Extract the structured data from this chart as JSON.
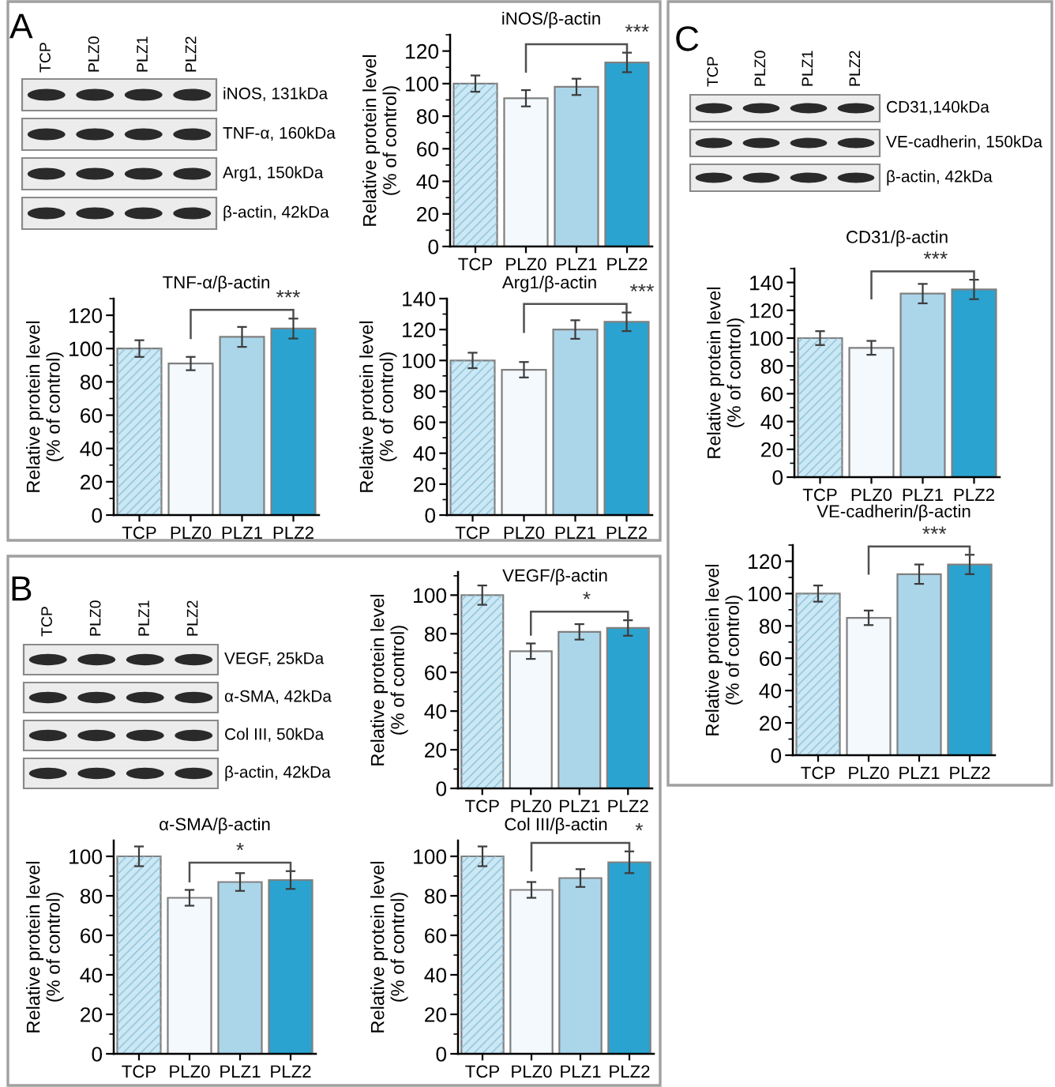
{
  "chart_data": [
    {
      "type": "other",
      "title": "A",
      "categories": [
        "TCP",
        "PLZ0",
        "PLZ1",
        "PLZ2"
      ],
      "y_categories": [
        "iNOS, 131kDa",
        "TNF-α, 160kDa",
        "Arg1, 150kDa",
        "β-actin, 42kDa"
      ]
    },
    {
      "type": "bar",
      "title": "iNOS/β-actin",
      "ylabel": "Relative protein level\n(% of control)",
      "categories": [
        "TCP",
        "PLZ0",
        "PLZ1",
        "PLZ2"
      ],
      "values": [
        100,
        91,
        98,
        113
      ],
      "errors": [
        5,
        5,
        5,
        6
      ],
      "colors": [
        "#cbe8f5",
        "#f3f9fc",
        "#abd6ea",
        "#2ba3d0"
      ],
      "ylim": [
        0,
        130
      ],
      "yticks": [
        0,
        20,
        40,
        60,
        80,
        100,
        120
      ],
      "annotations": [
        "***"
      ]
    },
    {
      "type": "bar",
      "title": "TNF-α/β-actin",
      "ylabel": "Relative protein level\n(% of control)",
      "categories": [
        "TCP",
        "PLZ0",
        "PLZ1",
        "PLZ2"
      ],
      "values": [
        100,
        91,
        107,
        112
      ],
      "errors": [
        5,
        4,
        6,
        6
      ],
      "colors": [
        "#cbe8f5",
        "#f3f9fc",
        "#abd6ea",
        "#2ba3d0"
      ],
      "ylim": [
        0,
        130
      ],
      "yticks": [
        0,
        20,
        40,
        60,
        80,
        100,
        120
      ],
      "annotations": [
        "***"
      ]
    },
    {
      "type": "bar",
      "title": "Arg1/β-actin",
      "ylabel": "Relative protein level\n(% of control)",
      "categories": [
        "TCP",
        "PLZ0",
        "PLZ1",
        "PLZ2"
      ],
      "values": [
        100,
        94,
        120,
        125
      ],
      "errors": [
        5,
        5,
        6,
        6
      ],
      "colors": [
        "#cbe8f5",
        "#f3f9fc",
        "#abd6ea",
        "#2ba3d0"
      ],
      "ylim": [
        0,
        140
      ],
      "yticks": [
        0,
        20,
        40,
        60,
        80,
        100,
        120,
        140
      ],
      "annotations": [
        "***"
      ]
    },
    {
      "type": "other",
      "title": "B",
      "categories": [
        "TCP",
        "PLZ0",
        "PLZ1",
        "PLZ2"
      ],
      "y_categories": [
        "VEGF, 25kDa",
        "α-SMA, 42kDa",
        "Col III, 50kDa",
        "β-actin, 42kDa"
      ]
    },
    {
      "type": "bar",
      "title": "VEGF/β-actin",
      "ylabel": "Relative protein level\n(% of control)",
      "categories": [
        "TCP",
        "PLZ0",
        "PLZ1",
        "PLZ2"
      ],
      "values": [
        100,
        71,
        81,
        83
      ],
      "errors": [
        5,
        4,
        4,
        4
      ],
      "colors": [
        "#cbe8f5",
        "#f3f9fc",
        "#abd6ea",
        "#2ba3d0"
      ],
      "ylim": [
        0,
        112
      ],
      "yticks": [
        0,
        20,
        40,
        60,
        80,
        100
      ],
      "annotations": [
        "*"
      ]
    },
    {
      "type": "bar",
      "title": "α-SMA/β-actin",
      "ylabel": "Relative protein level\n(% of control)",
      "categories": [
        "TCP",
        "PLZ0",
        "PLZ1",
        "PLZ2"
      ],
      "values": [
        100,
        79,
        87,
        88
      ],
      "errors": [
        5,
        4,
        4.5,
        4.5
      ],
      "colors": [
        "#cbe8f5",
        "#f3f9fc",
        "#abd6ea",
        "#2ba3d0"
      ],
      "ylim": [
        0,
        108
      ],
      "yticks": [
        0,
        20,
        40,
        60,
        80,
        100
      ],
      "annotations": [
        "*"
      ]
    },
    {
      "type": "bar",
      "title": "Col III/β-actin",
      "ylabel": "Relative protein level\n(% of control)",
      "categories": [
        "TCP",
        "PLZ0",
        "PLZ1",
        "PLZ2"
      ],
      "values": [
        100,
        83,
        89,
        97
      ],
      "errors": [
        5,
        4,
        4.5,
        5.5
      ],
      "colors": [
        "#cbe8f5",
        "#f3f9fc",
        "#abd6ea",
        "#2ba3d0"
      ],
      "ylim": [
        0,
        108
      ],
      "yticks": [
        0,
        20,
        40,
        60,
        80,
        100
      ],
      "annotations": [
        "*"
      ]
    },
    {
      "type": "other",
      "title": "C",
      "categories": [
        "TCP",
        "PLZ0",
        "PLZ1",
        "PLZ2"
      ],
      "y_categories": [
        "CD31,140kDa",
        "VE-cadherin, 150kDa",
        "β-actin, 42kDa"
      ]
    },
    {
      "type": "bar",
      "title": "CD31/β-actin",
      "ylabel": "Relative protein level\n(% of control)",
      "categories": [
        "TCP",
        "PLZ0",
        "PLZ1",
        "PLZ2"
      ],
      "values": [
        100,
        93,
        132,
        135
      ],
      "errors": [
        5,
        5,
        7,
        7
      ],
      "colors": [
        "#cbe8f5",
        "#f3f9fc",
        "#abd6ea",
        "#2ba3d0"
      ],
      "ylim": [
        0,
        150
      ],
      "yticks": [
        0,
        20,
        40,
        60,
        80,
        100,
        120,
        140
      ],
      "annotations": [
        "***"
      ]
    },
    {
      "type": "bar",
      "title": "VE-cadherin/β-actin",
      "ylabel": "Relative protein level\n(% of control)",
      "categories": [
        "TCP",
        "PLZ0",
        "PLZ1",
        "PLZ2"
      ],
      "values": [
        100,
        85,
        112,
        118
      ],
      "errors": [
        5,
        4.5,
        6,
        6
      ],
      "colors": [
        "#cbe8f5",
        "#f3f9fc",
        "#abd6ea",
        "#2ba3d0"
      ],
      "ylim": [
        0,
        130
      ],
      "yticks": [
        0,
        20,
        40,
        60,
        80,
        100,
        120
      ],
      "annotations": [
        "***"
      ]
    }
  ]
}
